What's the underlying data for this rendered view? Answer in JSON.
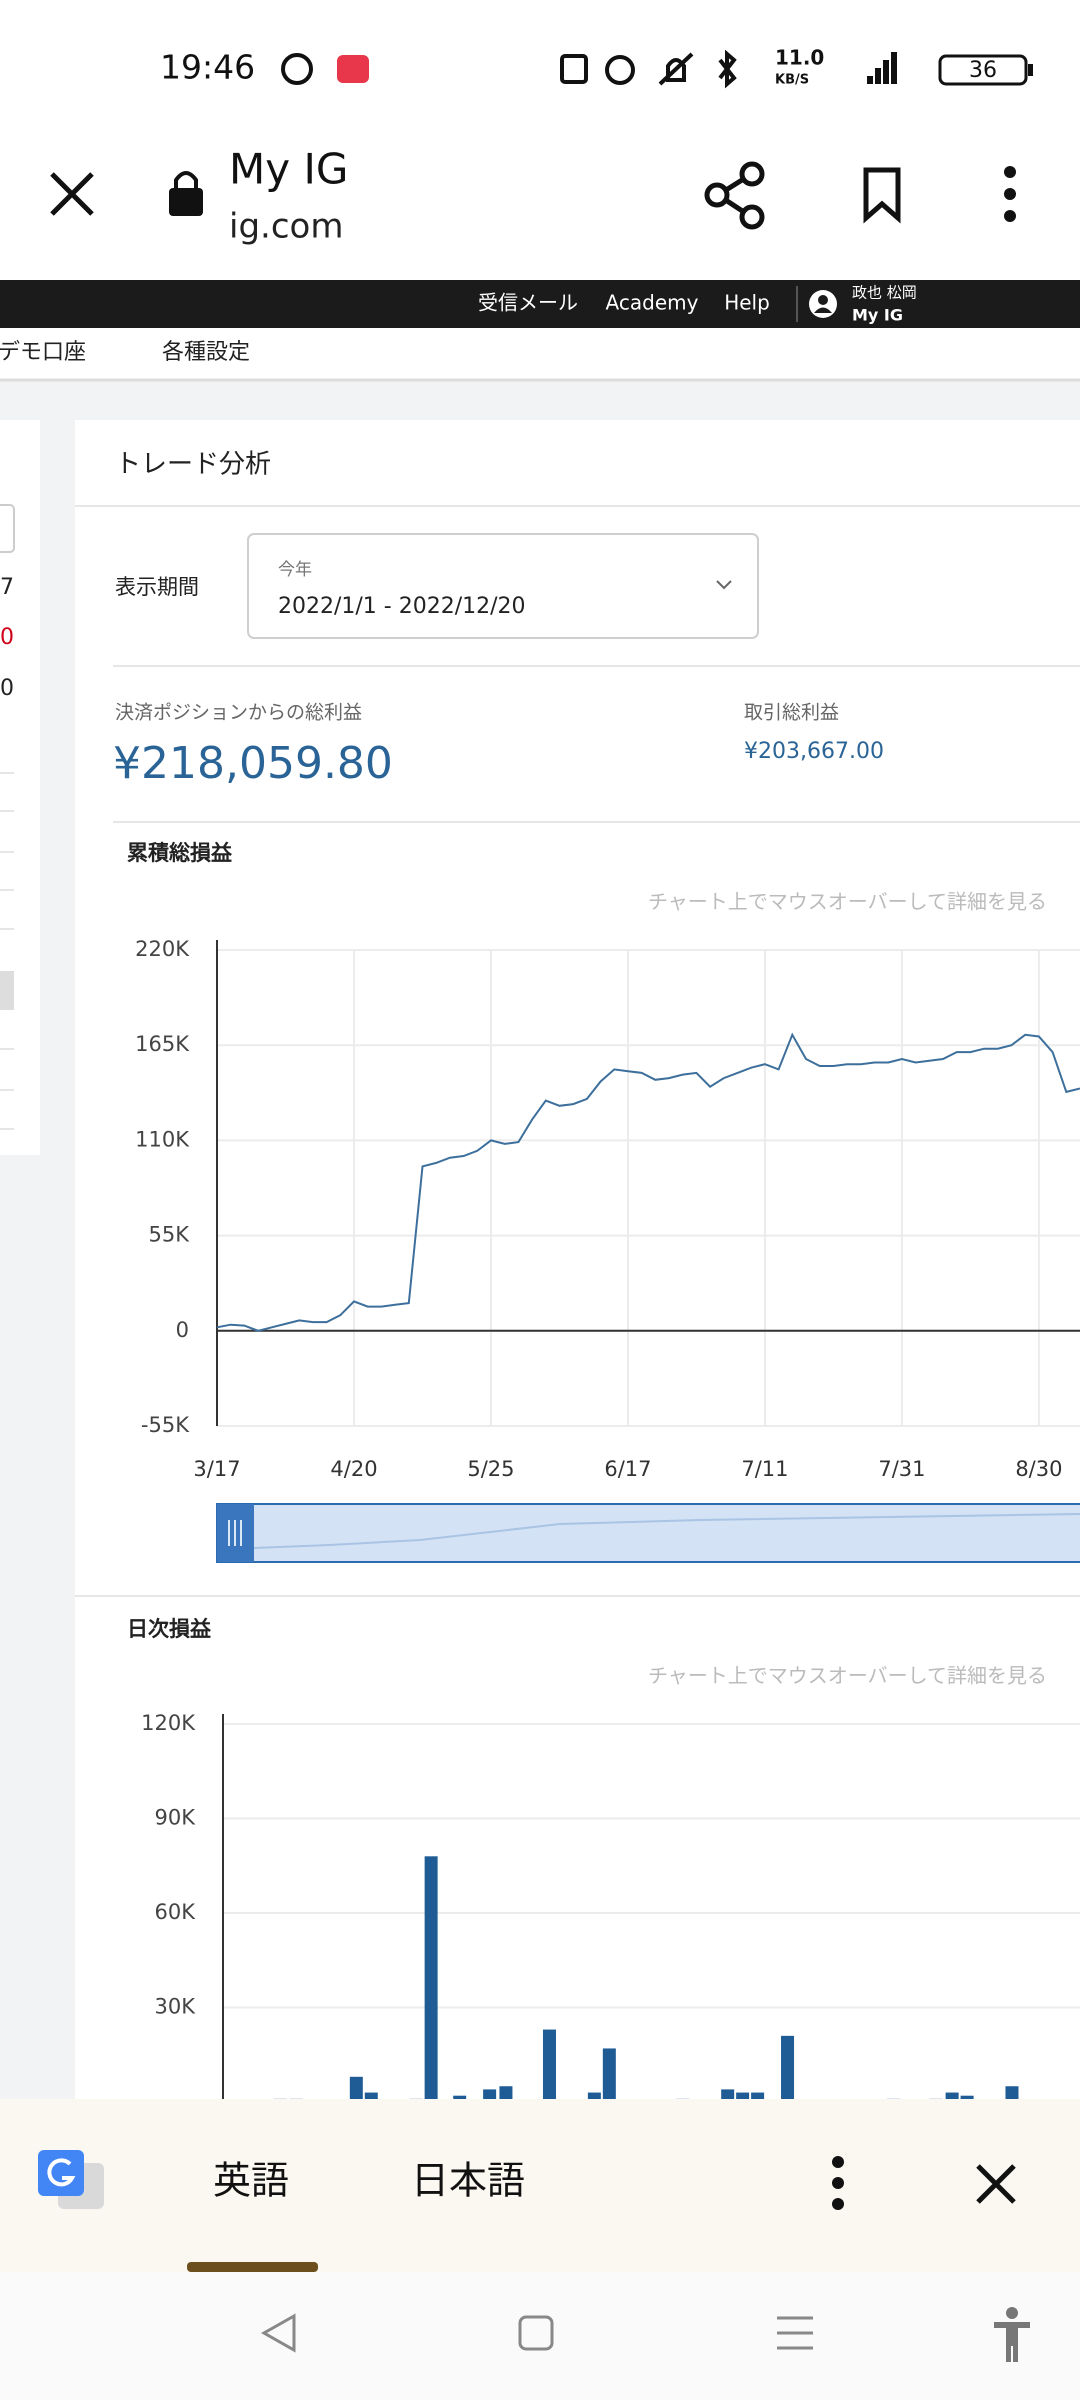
{
  "status_bar": {
    "time": "19:46",
    "network_speed": "11.0",
    "network_unit": "KB/S",
    "battery": "36"
  },
  "browser": {
    "title": "My IG",
    "url": "ig.com"
  },
  "site_nav": {
    "links": [
      "受信メール",
      "Academy",
      "Help"
    ],
    "user_name": "政也 松岡",
    "user_link": "My IG"
  },
  "sub_nav": [
    "デモ口座",
    "各種設定"
  ],
  "side_panel": {
    "values": [
      "7",
      "0",
      "0"
    ]
  },
  "section_title": "トレード分析",
  "period": {
    "label": "表示期間",
    "option": "今年",
    "range": "2022/1/1 - 2022/12/20"
  },
  "summary": [
    {
      "label": "決済ポジションからの総利益",
      "value": "¥218,059.80"
    },
    {
      "label": "取引総利益",
      "value": "¥203,667.00"
    }
  ],
  "charts": [
    {
      "type": "line",
      "title": "累積総損益",
      "hint": "チャート上でマウスオーバーして詳細を見る",
      "x": [
        0,
        1,
        2,
        3,
        4,
        5,
        6,
        7,
        8,
        9,
        10,
        11,
        12,
        13,
        14,
        15,
        16,
        17,
        18,
        19,
        20,
        21,
        22,
        23,
        24,
        25,
        26,
        27,
        28,
        29,
        30,
        31,
        32,
        33,
        34,
        35,
        36,
        37,
        38,
        39,
        40,
        41,
        42,
        43,
        44,
        45,
        46,
        47,
        48,
        49,
        50,
        51,
        52,
        53,
        54,
        55,
        56,
        57,
        58,
        59,
        60,
        61,
        62,
        63
      ],
      "xlim": [
        0,
        63
      ],
      "xticks": [
        {
          "value": 0,
          "label": "3/17"
        },
        {
          "value": 10,
          "label": "4/20"
        },
        {
          "value": 20,
          "label": "5/25"
        },
        {
          "value": 30,
          "label": "6/17"
        },
        {
          "value": 40,
          "label": "7/11"
        },
        {
          "value": 50,
          "label": "7/31"
        },
        {
          "value": 60,
          "label": "8/30"
        }
      ],
      "ylim": [
        -55000,
        220000
      ],
      "yticks": [
        {
          "value": 220000,
          "label": "220K"
        },
        {
          "value": 165000,
          "label": "165K"
        },
        {
          "value": 110000,
          "label": "110K"
        },
        {
          "value": 55000,
          "label": "55K"
        },
        0,
        {
          "value": -55000,
          "label": "-55K"
        }
      ],
      "grid": true,
      "series": [
        {
          "color": "#3d6f9c",
          "values": [
            2000,
            3500,
            3000,
            0,
            2000,
            4000,
            6000,
            5000,
            5000,
            9000,
            17000,
            14000,
            14000,
            15000,
            16000,
            95000,
            97000,
            100000,
            101000,
            104000,
            110000,
            108000,
            109000,
            122000,
            133000,
            130000,
            131000,
            134000,
            144000,
            151000,
            150000,
            149000,
            145000,
            146000,
            148000,
            149000,
            141000,
            146000,
            149000,
            152000,
            154000,
            151000,
            171000,
            157000,
            153000,
            153000,
            154000,
            154000,
            155000,
            155000,
            157000,
            155000,
            156000,
            157000,
            161000,
            161000,
            163000,
            163000,
            165000,
            171000,
            170000,
            161000,
            138000,
            140000
          ]
        }
      ]
    },
    {
      "type": "bar",
      "title": "日次損益",
      "hint": "チャート上でマウスオーバーして詳細を見る",
      "x": [
        4.2,
        5.4,
        9.8,
        10.9,
        14.2,
        15.3,
        17.4,
        19.6,
        20.8,
        24.0,
        27.3,
        28.4,
        33.8,
        37.1,
        38.2,
        39.3,
        41.5,
        49.3,
        52.4,
        53.6,
        54.7,
        58.0
      ],
      "xlim": [
        0,
        63
      ],
      "ylim": [
        0,
        120000
      ],
      "yticks": [
        {
          "value": 120000,
          "label": "120K"
        },
        {
          "value": 90000,
          "label": "90K"
        },
        {
          "value": 60000,
          "label": "60K"
        },
        {
          "value": 30000,
          "label": "30K"
        }
      ],
      "grid": true,
      "color": "#1f5c96",
      "values": [
        1000,
        1000,
        8000,
        3000,
        1000,
        78000,
        2000,
        4000,
        5000,
        23000,
        3000,
        17000,
        1000,
        4000,
        3000,
        3000,
        21000,
        1000,
        1000,
        3000,
        2000,
        5000
      ]
    }
  ],
  "translate_bar": {
    "source": "英語",
    "target": "日本語"
  }
}
